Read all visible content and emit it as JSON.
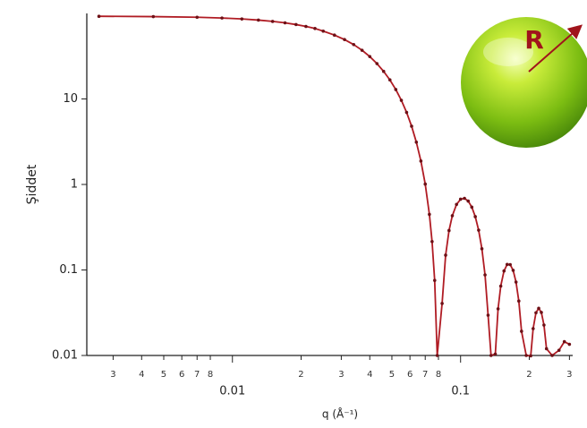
{
  "chart_data": {
    "type": "line",
    "xlabel": "q (Å⁻¹)",
    "ylabel": "Şiddet",
    "annotation": "R",
    "color": "#b01c24",
    "xscale": "log",
    "yscale": "log",
    "xlim": [
      0.0023,
      0.31
    ],
    "ylim": [
      0.01,
      100
    ],
    "xticks": [
      {
        "value": 0.003,
        "label": "3"
      },
      {
        "value": 0.004,
        "label": "4"
      },
      {
        "value": 0.005,
        "label": "5"
      },
      {
        "value": 0.006,
        "label": "6"
      },
      {
        "value": 0.007,
        "label": "7"
      },
      {
        "value": 0.008,
        "label": "8"
      },
      0.01,
      {
        "value": 0.02,
        "label": "2"
      },
      {
        "value": 0.03,
        "label": "3"
      },
      {
        "value": 0.04,
        "label": "4"
      },
      {
        "value": 0.05,
        "label": "5"
      },
      {
        "value": 0.06,
        "label": "6"
      },
      {
        "value": 0.07,
        "label": "7"
      },
      {
        "value": 0.08,
        "label": "8"
      },
      0.1,
      {
        "value": 0.2,
        "label": "2"
      },
      {
        "value": 0.3,
        "label": "3"
      }
    ],
    "yticks": [
      0.01,
      0.1,
      1,
      10
    ],
    "x": [
      0.0026,
      0.0045,
      0.007,
      0.009,
      0.011,
      0.013,
      0.015,
      0.017,
      0.019,
      0.021,
      0.023,
      0.025,
      0.028,
      0.031,
      0.034,
      0.037,
      0.04,
      0.043,
      0.046,
      0.049,
      0.052,
      0.055,
      0.058,
      0.061,
      0.064,
      0.067,
      0.07,
      0.073,
      0.075,
      0.077,
      0.079,
      0.083,
      0.086,
      0.089,
      0.092,
      0.096,
      0.1,
      0.104,
      0.108,
      0.112,
      0.116,
      0.12,
      0.124,
      0.128,
      0.132,
      0.136,
      0.142,
      0.146,
      0.15,
      0.155,
      0.16,
      0.165,
      0.17,
      0.175,
      0.18,
      0.185,
      0.194,
      0.203,
      0.208,
      0.214,
      0.22,
      0.226,
      0.232,
      0.238,
      0.252,
      0.27,
      0.285,
      0.3
    ],
    "values": [
      92.6,
      91.8,
      90.2,
      88.4,
      86.2,
      83.6,
      80.7,
      77.6,
      74.1,
      70.5,
      66.7,
      62.1,
      55.8,
      49.5,
      43.2,
      37.1,
      31.3,
      25.9,
      21.0,
      16.7,
      12.9,
      9.64,
      6.96,
      4.8,
      3.12,
      1.88,
      1.01,
      0.447,
      0.215,
      0.0755,
      0.01,
      0.0406,
      0.149,
      0.289,
      0.431,
      0.584,
      0.672,
      0.688,
      0.639,
      0.543,
      0.42,
      0.292,
      0.177,
      0.0876,
      0.0296,
      0.01,
      0.0104,
      0.0351,
      0.0648,
      0.0974,
      0.116,
      0.1155,
      0.099,
      0.0722,
      0.0433,
      0.0192,
      0.01,
      0.0099,
      0.0206,
      0.0316,
      0.0356,
      0.0319,
      0.0227,
      0.012,
      0.01,
      0.0115,
      0.0145,
      0.0135
    ]
  }
}
